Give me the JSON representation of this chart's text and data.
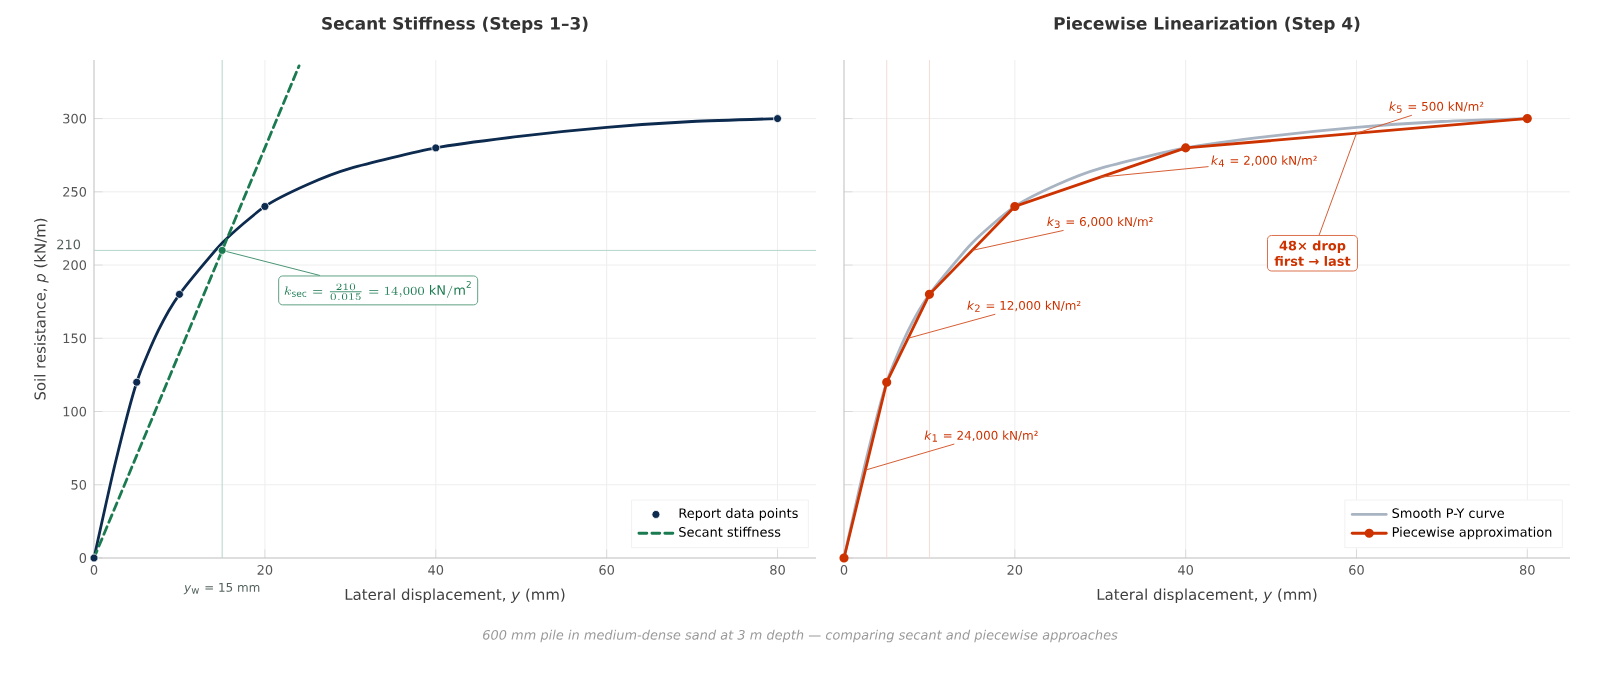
{
  "chart_data": [
    {
      "type": "line",
      "title": "Secant Stiffness  (Steps 1–3)",
      "xlabel": "Lateral displacement,  *y*   (mm)",
      "ylabel": "Soil resistance,  *p*   (kN/m)",
      "xlim": [
        0,
        84.5
      ],
      "ylim": [
        0,
        340
      ],
      "xticks": [
        0,
        20,
        40,
        60,
        80
      ],
      "yticks": [
        0,
        50,
        100,
        150,
        200,
        250,
        300
      ],
      "grid": true,
      "legend": "bottom right",
      "series": [
        {
          "color": "#0d2a4f",
          "x": [
            0,
            2.5,
            5,
            7.5,
            10,
            15,
            20,
            25,
            30,
            40,
            50,
            60,
            70,
            80
          ],
          "values": [
            0,
            65,
            120,
            155,
            180,
            215,
            240,
            255,
            266,
            280,
            288,
            294,
            298,
            300
          ]
        },
        {
          "type": "scatter",
          "name": "Report data points",
          "color": "#0d2a4f",
          "marker": "circle",
          "x": [
            0,
            5,
            10,
            20,
            40,
            80
          ],
          "values": [
            0,
            120,
            180,
            240,
            280,
            300
          ]
        },
        {
          "name": "Secant stiffness",
          "color": "#1a7a50",
          "line_style": "dashed",
          "x": [
            0,
            24
          ],
          "values": [
            0,
            336
          ]
        },
        {
          "type": "scatter",
          "color": "#1a7a50",
          "marker": "circle",
          "x": [
            15
          ],
          "values": [
            210
          ]
        }
      ],
      "ref_lines": [
        {
          "axis": "x",
          "value": 15,
          "label": "*y*$_{w}$ = 15 mm",
          "color": "#b5d6c8"
        },
        {
          "axis": "y",
          "value": 210,
          "label": "210",
          "color": "#b5d6c8"
        }
      ],
      "annotations": [
        {
          "text": "k_{\\mathrm{sec}} = \\frac{210}{0.015} = 14{,}000\\ \\mathrm{kN/m^2}",
          "x": 15,
          "y": 210
        },
        "600 mm pile in medium-dense sand at 3 m depth  —  comparing secant and piecewise approaches"
      ]
    },
    {
      "type": "line",
      "title": "Piecewise Linearization  (Step 4)",
      "xlabel": "Lateral displacement,  *y*   (mm)",
      "xlim": [
        0,
        85
      ],
      "ylim": [
        0,
        340
      ],
      "xticks": [
        0,
        20,
        40,
        60,
        80
      ],
      "yticks": [
        0,
        50,
        100,
        150,
        200,
        250,
        300
      ],
      "grid": true,
      "legend": "bottom right",
      "tick_labels": "x",
      "series": [
        {
          "name": "Smooth P-Y curve",
          "color": "#a9b4c2",
          "x": [
            0,
            2.5,
            5,
            7.5,
            10,
            15,
            20,
            25,
            30,
            40,
            50,
            60,
            70,
            80
          ],
          "values": [
            0,
            65,
            120,
            155,
            180,
            215,
            240,
            255,
            266,
            280,
            288,
            294,
            298,
            300
          ]
        },
        {
          "name": "Piecewise approximation",
          "color": "#cc3300",
          "marker": "circle",
          "x": [
            0,
            5,
            10,
            20,
            40,
            80
          ],
          "values": [
            0,
            120,
            180,
            240,
            280,
            300
          ]
        }
      ],
      "ref_lines": [
        {
          "axis": "x",
          "value": 5,
          "color": "#f2dcd5"
        },
        {
          "axis": "x",
          "value": 10,
          "color": "#f2dcd5"
        }
      ],
      "annotations": [
        {
          "text": "*k*$_{1}$ = 24,000  kN/m²",
          "x": 2.5,
          "y": 60
        },
        {
          "text": "*k*$_{2}$ = 12,000  kN/m²",
          "x": 7.5,
          "y": 150
        },
        {
          "text": "*k*$_{3}$ = 6,000  kN/m²",
          "x": 15,
          "y": 210
        },
        {
          "text": "*k*$_{4}$ = 2,000  kN/m²",
          "x": 30,
          "y": 260
        },
        {
          "text": "*k*$_{5}$ = 500  kN/m²",
          "x": 60,
          "y": 290
        },
        {
          "text": "**48× drop first → last**",
          "x": 60,
          "y": 290
        }
      ]
    }
  ]
}
